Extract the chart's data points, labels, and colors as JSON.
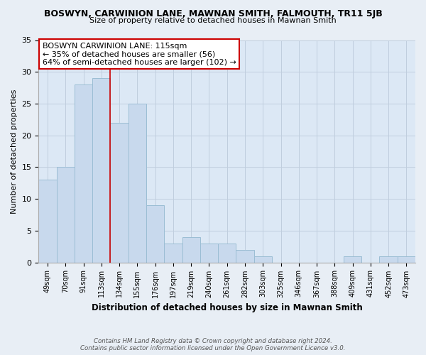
{
  "title": "BOSWYN, CARWINION LANE, MAWNAN SMITH, FALMOUTH, TR11 5JB",
  "subtitle": "Size of property relative to detached houses in Mawnan Smith",
  "xlabel": "Distribution of detached houses by size in Mawnan Smith",
  "ylabel": "Number of detached properties",
  "bar_color": "#c8d9ed",
  "bar_edge_color": "#9bbdd4",
  "categories": [
    "49sqm",
    "70sqm",
    "91sqm",
    "113sqm",
    "134sqm",
    "155sqm",
    "176sqm",
    "197sqm",
    "219sqm",
    "240sqm",
    "261sqm",
    "282sqm",
    "303sqm",
    "325sqm",
    "346sqm",
    "367sqm",
    "388sqm",
    "409sqm",
    "431sqm",
    "452sqm",
    "473sqm"
  ],
  "values": [
    13,
    15,
    28,
    29,
    22,
    25,
    9,
    3,
    4,
    3,
    3,
    2,
    1,
    0,
    0,
    0,
    0,
    1,
    0,
    1,
    1
  ],
  "ylim": [
    0,
    35
  ],
  "yticks": [
    0,
    5,
    10,
    15,
    20,
    25,
    30,
    35
  ],
  "annotation_title": "BOSWYN CARWINION LANE: 115sqm",
  "annotation_line1": "← 35% of detached houses are smaller (56)",
  "annotation_line2": "64% of semi-detached houses are larger (102) →",
  "annotation_box_color": "#ffffff",
  "annotation_box_edge": "#cc0000",
  "property_bar_index": 3,
  "property_line_color": "#cc0000",
  "footer_line1": "Contains HM Land Registry data © Crown copyright and database right 2024.",
  "footer_line2": "Contains public sector information licensed under the Open Government Licence v3.0.",
  "bg_color": "#e8eef5",
  "plot_bg_color": "#dce8f5",
  "grid_color": "#c0cede"
}
